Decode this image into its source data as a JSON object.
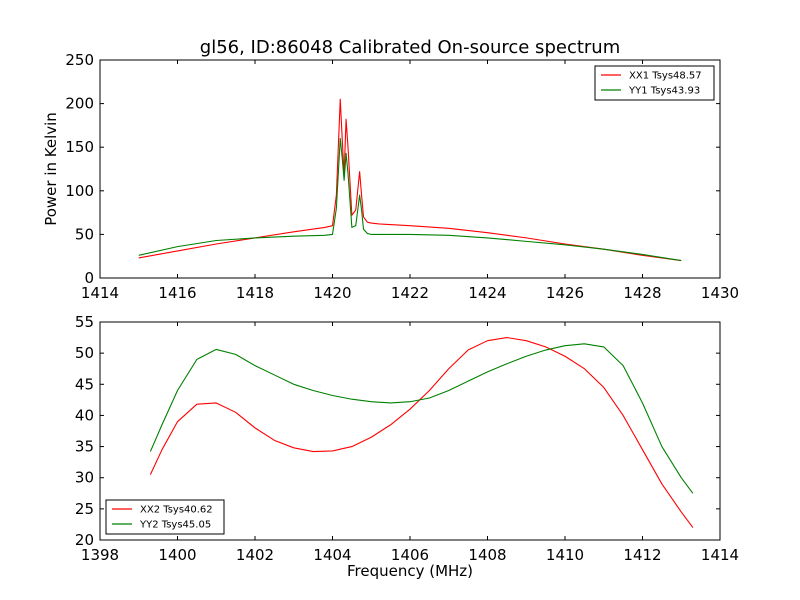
{
  "chart_data": [
    {
      "type": "line",
      "title": "gl56, ID:86048 Calibrated On-source spectrum",
      "xlabel": "",
      "ylabel": "Power in Kelvin",
      "xlim": [
        1414,
        1430
      ],
      "ylim": [
        0,
        250
      ],
      "xticks": [
        1414,
        1416,
        1418,
        1420,
        1422,
        1424,
        1426,
        1428,
        1430
      ],
      "yticks": [
        0,
        50,
        100,
        150,
        200,
        250
      ],
      "legend_position": "top-right",
      "series": [
        {
          "name": "XX1 Tsys48.57",
          "color": "#ff0000",
          "x": [
            1415.0,
            1416.0,
            1417.0,
            1418.0,
            1419.0,
            1419.8,
            1420.0,
            1420.1,
            1420.2,
            1420.25,
            1420.3,
            1420.35,
            1420.4,
            1420.5,
            1420.6,
            1420.7,
            1420.75,
            1420.8,
            1420.9,
            1421.0,
            1421.2,
            1422.0,
            1423.0,
            1424.0,
            1425.0,
            1426.0,
            1427.0,
            1428.0,
            1429.0
          ],
          "y": [
            23,
            31,
            39,
            46,
            53,
            58,
            60,
            95,
            205,
            160,
            118,
            182,
            150,
            72,
            78,
            122,
            95,
            70,
            64,
            63,
            62,
            60,
            57,
            52,
            46,
            39,
            33,
            26,
            20
          ]
        },
        {
          "name": "YY1 Tsys43.93",
          "color": "#008000",
          "x": [
            1415.0,
            1416.0,
            1417.0,
            1418.0,
            1419.0,
            1419.8,
            1420.0,
            1420.1,
            1420.2,
            1420.25,
            1420.3,
            1420.35,
            1420.4,
            1420.5,
            1420.6,
            1420.7,
            1420.75,
            1420.8,
            1420.9,
            1421.0,
            1421.2,
            1422.0,
            1423.0,
            1424.0,
            1425.0,
            1426.0,
            1427.0,
            1428.0,
            1429.0
          ],
          "y": [
            26,
            36,
            43,
            46,
            48,
            49,
            50,
            80,
            160,
            138,
            112,
            143,
            120,
            58,
            60,
            95,
            78,
            56,
            51,
            50,
            50,
            50,
            49,
            46,
            42,
            38,
            33,
            27,
            20
          ]
        }
      ]
    },
    {
      "type": "line",
      "title": "",
      "xlabel": "Frequency (MHz)",
      "ylabel": "",
      "xlim": [
        1398,
        1414
      ],
      "ylim": [
        20,
        55
      ],
      "xticks": [
        1398,
        1400,
        1402,
        1404,
        1406,
        1408,
        1410,
        1412,
        1414
      ],
      "yticks": [
        20,
        25,
        30,
        35,
        40,
        45,
        50,
        55
      ],
      "legend_position": "bottom-left",
      "series": [
        {
          "name": "XX2 Tsys40.62",
          "color": "#ff0000",
          "x": [
            1399.3,
            1399.6,
            1400.0,
            1400.5,
            1401.0,
            1401.5,
            1402.0,
            1402.5,
            1403.0,
            1403.5,
            1404.0,
            1404.5,
            1405.0,
            1405.5,
            1406.0,
            1406.5,
            1407.0,
            1407.5,
            1408.0,
            1408.5,
            1409.0,
            1409.5,
            1410.0,
            1410.5,
            1411.0,
            1411.5,
            1412.0,
            1412.5,
            1413.0,
            1413.3
          ],
          "y": [
            30.5,
            34.5,
            39.0,
            41.8,
            42.0,
            40.5,
            38.0,
            36.0,
            34.8,
            34.2,
            34.3,
            35.0,
            36.5,
            38.5,
            41.0,
            44.0,
            47.5,
            50.5,
            52.0,
            52.5,
            52.0,
            51.0,
            49.5,
            47.5,
            44.5,
            40.0,
            34.5,
            29.0,
            24.5,
            22.0
          ]
        },
        {
          "name": "YY2 Tsys45.05",
          "color": "#008000",
          "x": [
            1399.3,
            1399.6,
            1400.0,
            1400.5,
            1401.0,
            1401.5,
            1402.0,
            1402.5,
            1403.0,
            1403.5,
            1404.0,
            1404.5,
            1405.0,
            1405.5,
            1406.0,
            1406.5,
            1407.0,
            1407.5,
            1408.0,
            1408.5,
            1409.0,
            1409.5,
            1410.0,
            1410.5,
            1411.0,
            1411.5,
            1412.0,
            1412.5,
            1413.0,
            1413.3
          ],
          "y": [
            34.2,
            38.5,
            44.0,
            49.0,
            50.6,
            49.8,
            48.0,
            46.5,
            45.0,
            44.0,
            43.2,
            42.6,
            42.2,
            42.0,
            42.2,
            42.8,
            44.0,
            45.5,
            47.0,
            48.3,
            49.5,
            50.5,
            51.2,
            51.5,
            51.0,
            48.0,
            42.0,
            35.0,
            30.0,
            27.5
          ]
        }
      ]
    }
  ]
}
